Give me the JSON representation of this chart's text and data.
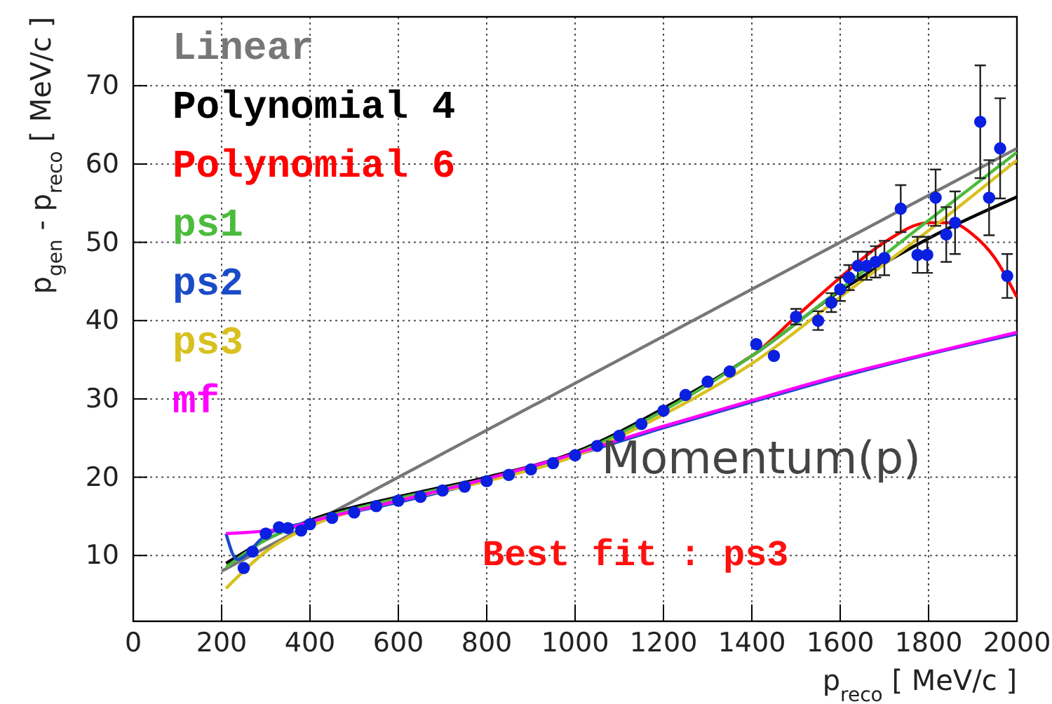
{
  "chart_data": {
    "type": "line",
    "xlabel": "p$_{reco}$ [ MeV/c ]",
    "ylabel": "p$_{gen}$ - p$_{reco}$ [ MeV/c ]",
    "xlim": [
      0,
      2000
    ],
    "xticks": [
      0,
      200,
      400,
      600,
      800,
      1000,
      1200,
      1400,
      1600,
      1800,
      2000
    ],
    "ylim": [
      1.6,
      78.8
    ],
    "yticks": [
      10,
      20,
      30,
      40,
      50,
      60,
      70
    ],
    "grid": true,
    "legend": "top left",
    "line_style": "solid",
    "annotations": [
      "Momentum(p)",
      "Best fit : ps3"
    ],
    "series": [
      {
        "type": "scatter",
        "marker": "circle",
        "color": "#0a1fe0",
        "x": [
          250,
          270,
          300,
          330,
          350,
          380,
          400,
          450,
          500,
          550,
          600,
          650,
          700,
          750,
          800,
          850,
          900,
          950,
          1000,
          1050,
          1100,
          1150,
          1200,
          1250,
          1300,
          1350,
          1410,
          1450,
          1500,
          1550,
          1580,
          1600,
          1620,
          1640,
          1660,
          1680,
          1700,
          1737,
          1775,
          1797,
          1816,
          1840,
          1860,
          1917,
          1937,
          1962,
          1978
        ],
        "values": [
          8.4,
          10.5,
          12.8,
          13.6,
          13.5,
          13.2,
          14,
          14.8,
          15.5,
          16.3,
          17,
          17.5,
          18.3,
          18.8,
          19.5,
          20.3,
          21,
          21.8,
          22.8,
          24,
          25.3,
          26.8,
          28.5,
          30.5,
          32.2,
          33.5,
          37,
          35.5,
          40.5,
          40,
          42.3,
          44,
          45.5,
          47,
          47,
          47.5,
          48,
          54.3,
          48.4,
          48.4,
          55.7,
          51,
          52.5,
          65.4,
          55.7,
          62,
          45.7
        ],
        "errors": [
          null,
          null,
          null,
          null,
          null,
          null,
          null,
          null,
          null,
          null,
          null,
          null,
          null,
          null,
          null,
          null,
          null,
          null,
          null,
          null,
          null,
          null,
          null,
          null,
          null,
          null,
          null,
          null,
          1,
          1.2,
          1.2,
          1.5,
          1.6,
          1.8,
          1.8,
          2,
          2.2,
          3,
          2.3,
          2.3,
          3.6,
          3.5,
          4,
          7.2,
          4.8,
          6.4,
          2.8
        ]
      },
      {
        "name": "Linear",
        "color": "#777777",
        "x": [
          200,
          2000
        ],
        "values": [
          8,
          62
        ]
      },
      {
        "name": "Polynomial 4",
        "color": "#000000",
        "x": [
          210,
          300,
          400,
          600,
          800,
          1000,
          1200,
          1400,
          1600,
          1800,
          2000
        ],
        "values": [
          9,
          12,
          14.5,
          17.5,
          20,
          23.2,
          28.8,
          35.5,
          43.8,
          50.5,
          55.8
        ]
      },
      {
        "name": "Polynomial 6",
        "color": "#ff0000",
        "x": [
          1380,
          1400,
          1500,
          1600,
          1700,
          1800,
          1850,
          1900,
          1950,
          2000
        ],
        "values": [
          34.8,
          35.5,
          40.5,
          45.5,
          50,
          52.5,
          52.5,
          51,
          48,
          43
        ]
      },
      {
        "name": "ps1",
        "color": "#4cbb3c",
        "x": [
          210,
          300,
          400,
          600,
          800,
          1000,
          1200,
          1400,
          1600,
          1800,
          2000
        ],
        "values": [
          8.5,
          12,
          14.3,
          17.3,
          19.8,
          23,
          28.5,
          35.5,
          44,
          52.8,
          61.5
        ]
      },
      {
        "name": "ps2",
        "color": "#1a4cc8",
        "x": [
          210,
          235,
          300,
          400,
          600,
          800,
          1000,
          1200,
          1400,
          1600,
          1800,
          2000
        ],
        "values": [
          12.8,
          9.5,
          12.6,
          14.3,
          16.8,
          19.6,
          22.8,
          26.3,
          29.6,
          32.8,
          35.7,
          38.3
        ]
      },
      {
        "name": "ps3",
        "color": "#d8c020",
        "x": [
          210,
          300,
          400,
          600,
          800,
          1000,
          1200,
          1400,
          1600,
          1800,
          2000
        ],
        "values": [
          5.8,
          10.5,
          13.7,
          17,
          19.5,
          22.7,
          28,
          34.5,
          43,
          51.5,
          60.5
        ]
      },
      {
        "name": "mf",
        "color": "#ff00ff",
        "x": [
          210,
          350,
          400,
          600,
          800,
          1000,
          1200,
          1400,
          1600,
          1800,
          2000
        ],
        "values": [
          12.8,
          13.5,
          14.3,
          17,
          19.8,
          23,
          26.5,
          29.8,
          33,
          35.8,
          38.5
        ]
      }
    ]
  }
}
